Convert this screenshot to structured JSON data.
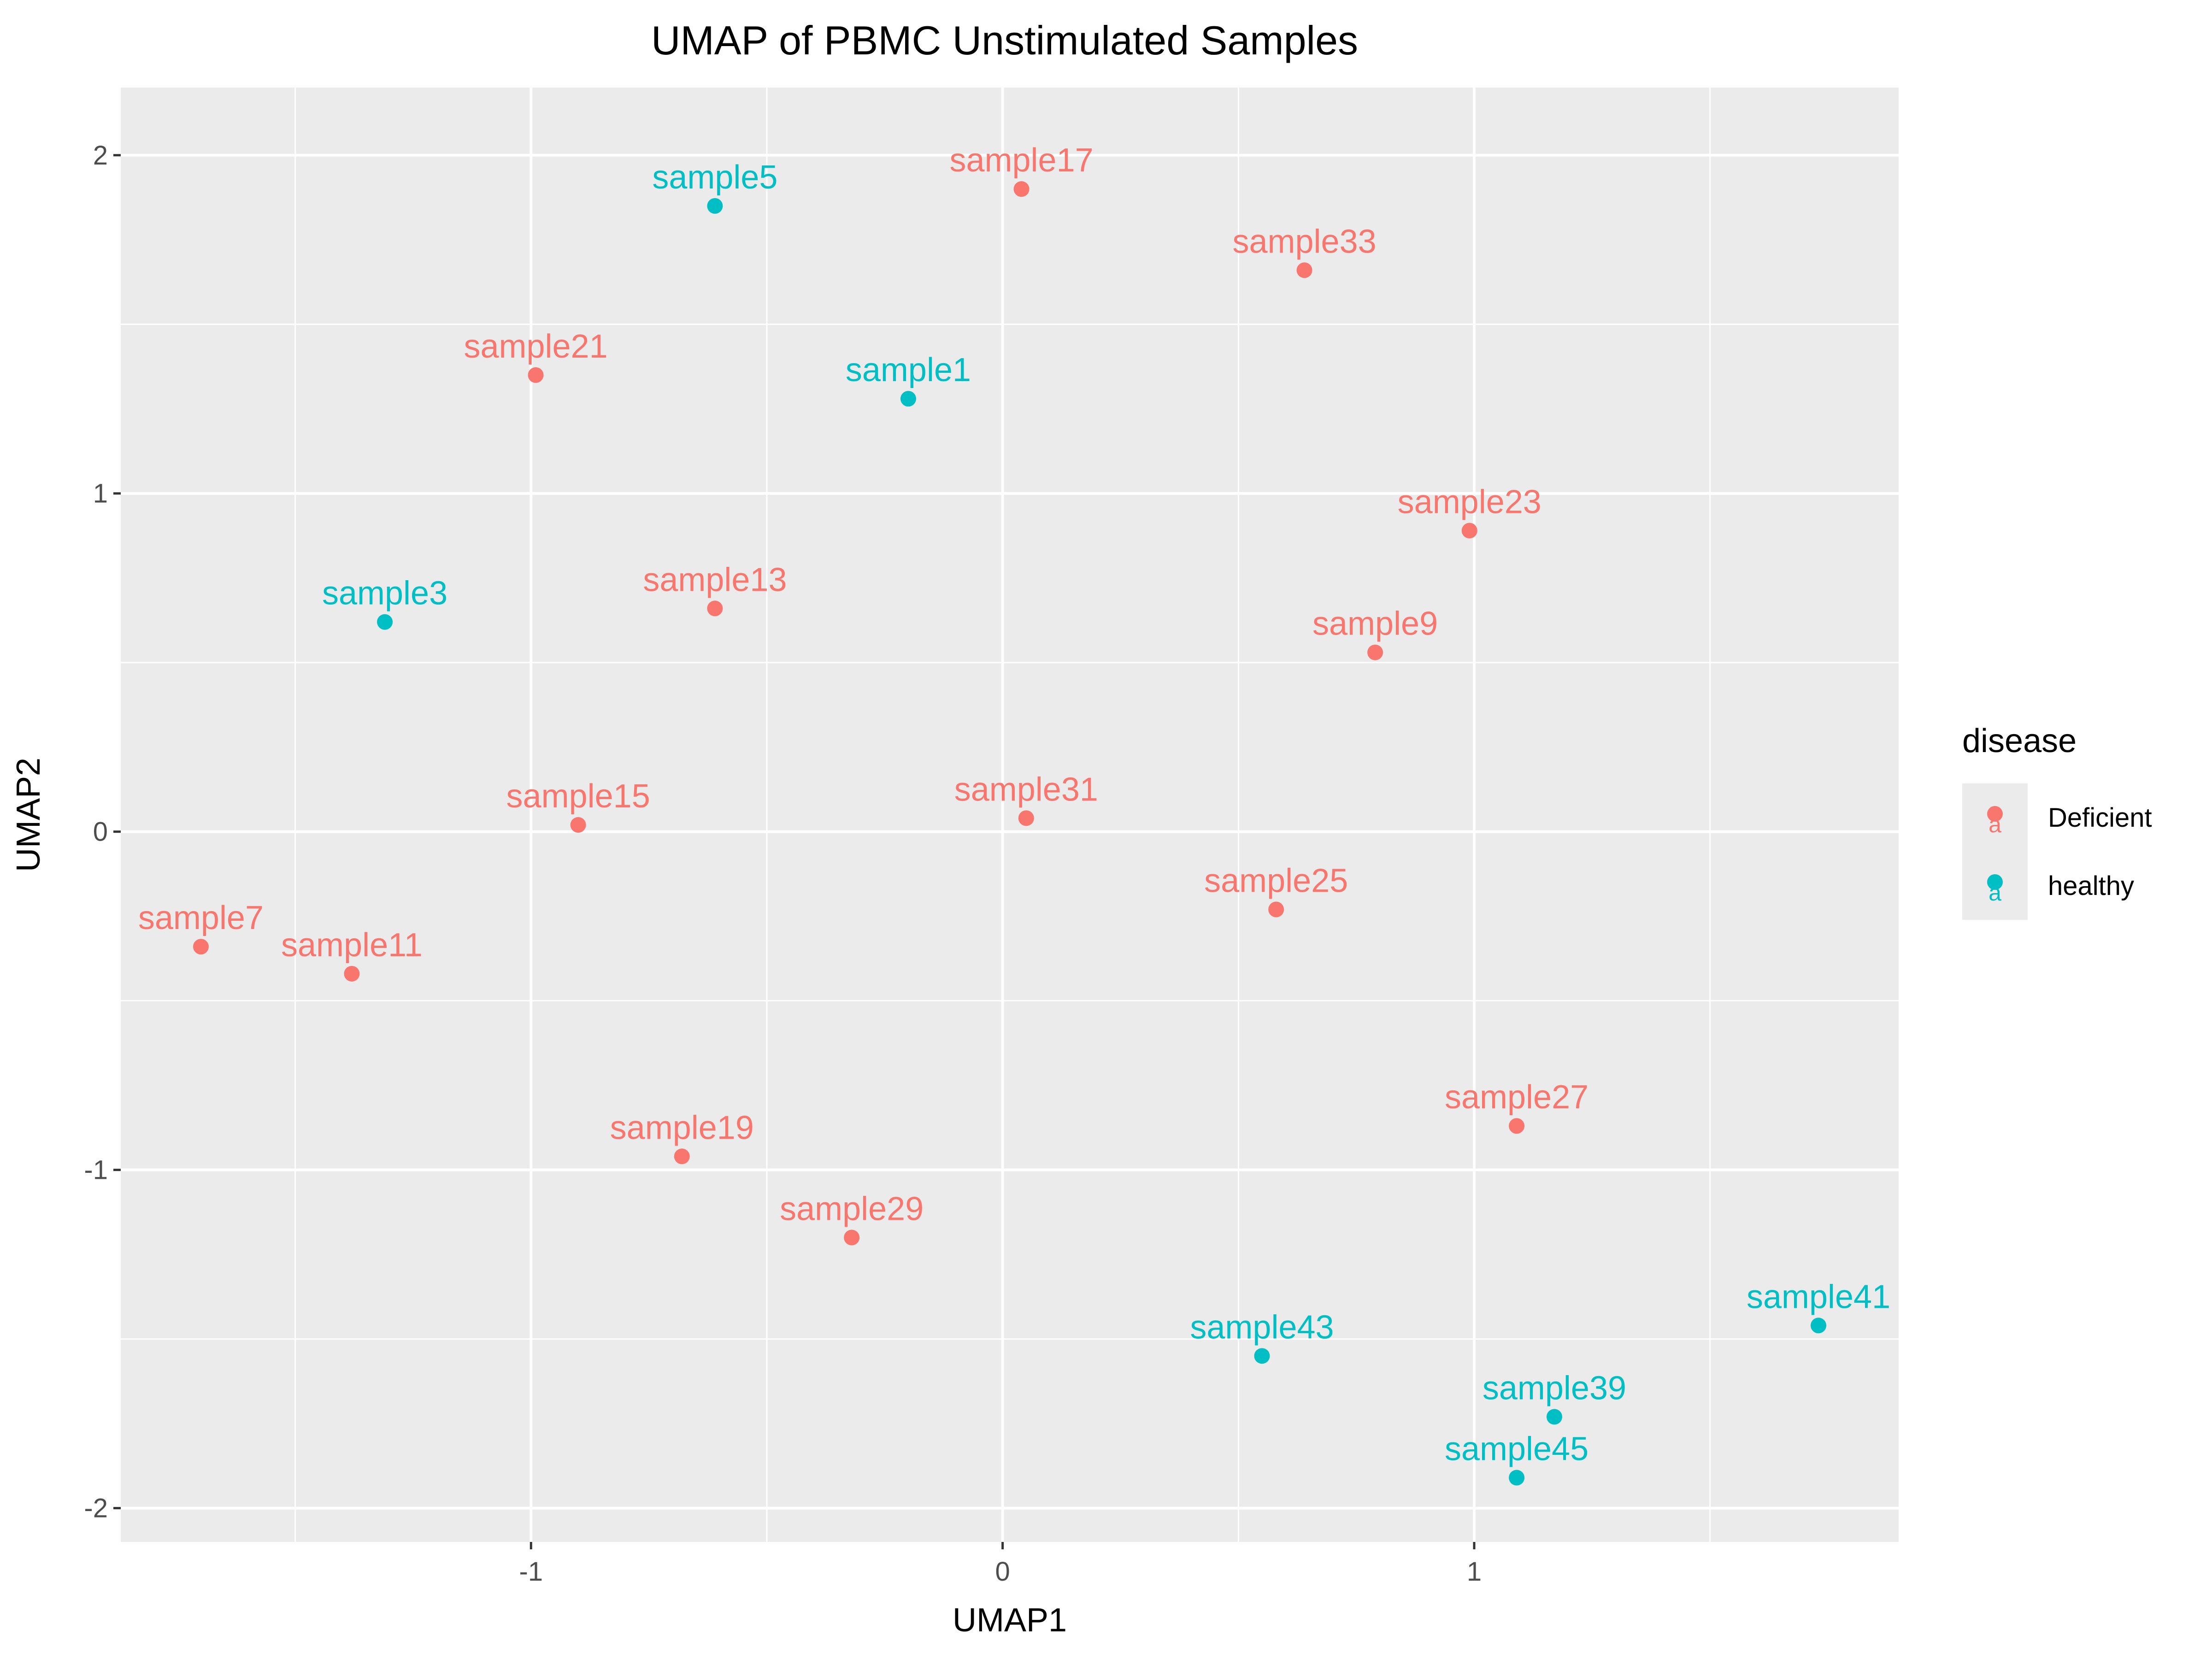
{
  "chart_data": {
    "type": "scatter",
    "title": "UMAP of PBMC Unstimulated Samples",
    "xlabel": "UMAP1",
    "ylabel": "UMAP2",
    "xlim": [
      -1.87,
      1.9
    ],
    "ylim": [
      -2.1,
      2.2
    ],
    "xticks": [
      -1,
      0,
      1
    ],
    "yticks": [
      2,
      1,
      0,
      -1,
      -2
    ],
    "xtick_labels": [
      "-1",
      "0",
      "1"
    ],
    "ytick_labels": [
      "2",
      "1",
      "0",
      "-1",
      "-2"
    ],
    "grid": true,
    "panel_background": "#ebebeb",
    "legend": {
      "title": "disease",
      "placement": "right",
      "entries": [
        {
          "label": "Deficient",
          "color": "#F8766D"
        },
        {
          "label": "healthy",
          "color": "#00BFC4"
        }
      ]
    },
    "points": [
      {
        "label": "sample1",
        "x": -0.2,
        "y": 1.28,
        "group": "healthy"
      },
      {
        "label": "sample3",
        "x": -1.31,
        "y": 0.62,
        "group": "healthy"
      },
      {
        "label": "sample5",
        "x": -0.61,
        "y": 1.85,
        "group": "healthy"
      },
      {
        "label": "sample7",
        "x": -1.7,
        "y": -0.34,
        "group": "Deficient"
      },
      {
        "label": "sample9",
        "x": 0.79,
        "y": 0.53,
        "group": "Deficient"
      },
      {
        "label": "sample11",
        "x": -1.38,
        "y": -0.42,
        "group": "Deficient"
      },
      {
        "label": "sample13",
        "x": -0.61,
        "y": 0.66,
        "group": "Deficient"
      },
      {
        "label": "sample15",
        "x": -0.9,
        "y": 0.02,
        "group": "Deficient"
      },
      {
        "label": "sample17",
        "x": 0.04,
        "y": 1.9,
        "group": "Deficient"
      },
      {
        "label": "sample19",
        "x": -0.68,
        "y": -0.96,
        "group": "Deficient"
      },
      {
        "label": "sample21",
        "x": -0.99,
        "y": 1.35,
        "group": "Deficient"
      },
      {
        "label": "sample23",
        "x": 0.99,
        "y": 0.89,
        "group": "Deficient"
      },
      {
        "label": "sample25",
        "x": 0.58,
        "y": -0.23,
        "group": "Deficient"
      },
      {
        "label": "sample27",
        "x": 1.09,
        "y": -0.87,
        "group": "Deficient"
      },
      {
        "label": "sample29",
        "x": -0.32,
        "y": -1.2,
        "group": "Deficient"
      },
      {
        "label": "sample31",
        "x": 0.05,
        "y": 0.04,
        "group": "Deficient"
      },
      {
        "label": "sample33",
        "x": 0.64,
        "y": 1.66,
        "group": "Deficient"
      },
      {
        "label": "sample39",
        "x": 1.17,
        "y": -1.73,
        "group": "healthy"
      },
      {
        "label": "sample41",
        "x": 1.73,
        "y": -1.46,
        "group": "healthy"
      },
      {
        "label": "sample43",
        "x": 0.55,
        "y": -1.55,
        "group": "healthy"
      },
      {
        "label": "sample45",
        "x": 1.09,
        "y": -1.91,
        "group": "healthy"
      }
    ]
  }
}
